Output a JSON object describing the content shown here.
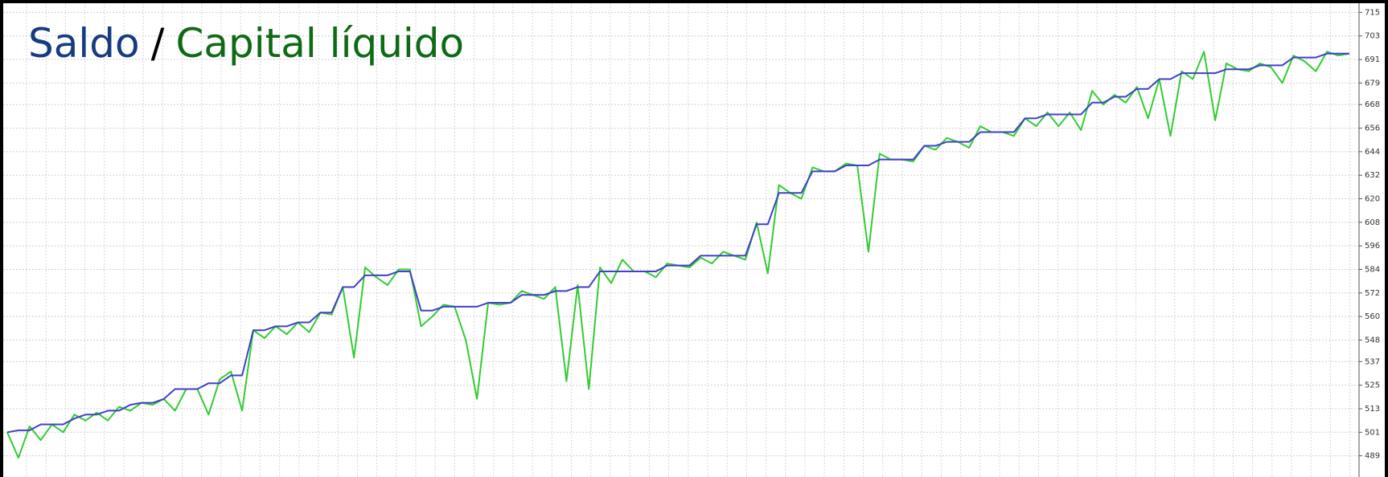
{
  "chart_data": {
    "type": "line",
    "title_separator": "/",
    "ylim": [
      478,
      718
    ],
    "yticks": [
      715,
      703,
      691,
      679,
      668,
      656,
      644,
      632,
      620,
      608,
      596,
      584,
      572,
      560,
      548,
      537,
      525,
      513,
      501,
      489
    ],
    "grid": true,
    "series": [
      {
        "name": "Saldo",
        "color": "#4040c8",
        "title_color": "#163b80",
        "values": [
          501,
          502,
          502,
          505,
          505,
          505,
          508,
          510,
          510,
          512,
          512,
          515,
          516,
          516,
          518,
          523,
          523,
          523,
          526,
          526,
          530,
          530,
          553,
          553,
          555,
          555,
          557,
          557,
          562,
          562,
          575,
          575,
          581,
          581,
          581,
          583,
          583,
          563,
          563,
          565,
          565,
          565,
          565,
          567,
          567,
          567,
          571,
          571,
          571,
          573,
          573,
          575,
          575,
          583,
          583,
          583,
          583,
          583,
          583,
          586,
          586,
          586,
          591,
          591,
          591,
          591,
          591,
          607,
          607,
          623,
          623,
          623,
          634,
          634,
          634,
          637,
          637,
          637,
          640,
          640,
          640,
          640,
          647,
          647,
          649,
          649,
          649,
          654,
          654,
          654,
          654,
          661,
          661,
          663,
          663,
          663,
          663,
          669,
          669,
          672,
          672,
          676,
          676,
          681,
          681,
          684,
          684,
          684,
          684,
          686,
          686,
          686,
          688,
          688,
          688,
          692,
          692,
          692,
          694,
          694,
          694
        ]
      },
      {
        "name": "Capital líquido",
        "color": "#33cc33",
        "title_color": "#0e6a14",
        "values": [
          501,
          488,
          504,
          497,
          505,
          501,
          510,
          507,
          511,
          507,
          514,
          512,
          516,
          515,
          518,
          512,
          523,
          523,
          510,
          528,
          532,
          512,
          553,
          549,
          555,
          551,
          557,
          552,
          562,
          561,
          575,
          539,
          585,
          580,
          576,
          584,
          584,
          555,
          560,
          566,
          565,
          548,
          518,
          567,
          566,
          567,
          573,
          571,
          569,
          575,
          527,
          576,
          523,
          585,
          577,
          589,
          583,
          583,
          580,
          587,
          586,
          585,
          590,
          587,
          593,
          591,
          589,
          608,
          582,
          627,
          623,
          620,
          636,
          634,
          634,
          638,
          637,
          593,
          643,
          640,
          640,
          639,
          647,
          645,
          651,
          649,
          646,
          657,
          654,
          654,
          652,
          661,
          657,
          664,
          657,
          664,
          655,
          675,
          668,
          673,
          669,
          677,
          661,
          681,
          652,
          685,
          681,
          695,
          660,
          689,
          686,
          685,
          689,
          687,
          679,
          693,
          690,
          685,
          695,
          693,
          694
        ]
      }
    ]
  }
}
